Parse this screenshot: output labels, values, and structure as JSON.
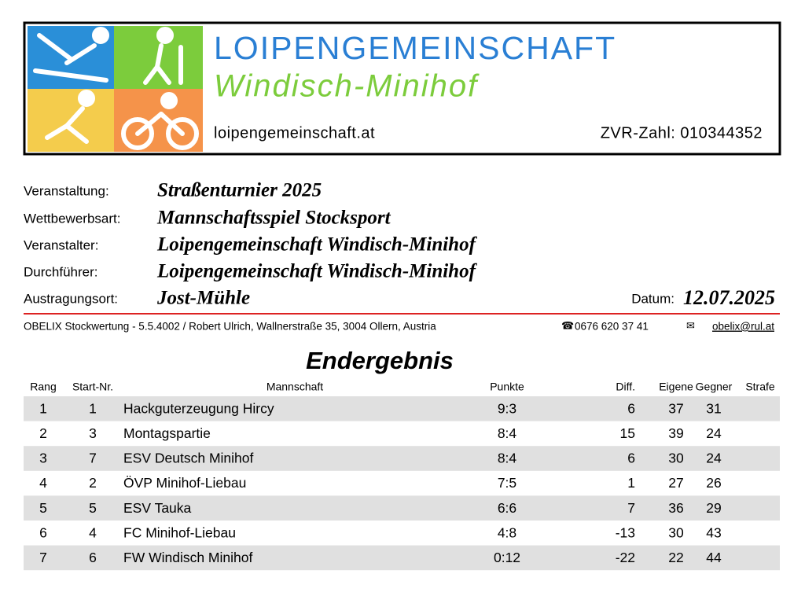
{
  "header": {
    "title": "LOIPENGEMEINSCHAFT",
    "subtitle": "Windisch-Minihof",
    "website": "loipengemeinschaft.at",
    "zvr": "ZVR-Zahl: 010344352"
  },
  "info": [
    {
      "label": "Veranstaltung:",
      "value": "Straßenturnier 2025"
    },
    {
      "label": "Wettbewerbsart:",
      "value": "Mannschaftsspiel Stocksport"
    },
    {
      "label": "Veranstalter:",
      "value": "Loipengemeinschaft Windisch-Minihof"
    },
    {
      "label": "Durchführer:",
      "value": "Loipengemeinschaft Windisch-Minihof"
    },
    {
      "label": "Austragungsort:",
      "value": "Jost-Mühle"
    }
  ],
  "date": {
    "label": "Datum:",
    "value": "12.07.2025"
  },
  "footer_line": {
    "software": "OBELIX Stockwertung - 5.5.4002 / Robert Ulrich, Wallnerstraße 35, 3004 Ollern, Austria",
    "phone": "0676 620 37 41",
    "email": "obelix@rul.at"
  },
  "result_title": "Endergebnis",
  "table": {
    "columns": [
      "Rang",
      "Start-Nr.",
      "Mannschaft",
      "Punkte",
      "Diff.",
      "Eigene",
      "Gegner",
      "Strafe"
    ],
    "rows": [
      [
        1,
        1,
        "Hackguterzeugung Hircy",
        "9:3",
        6,
        37,
        31
      ],
      [
        2,
        3,
        "Montagspartie",
        "8:4",
        15,
        39,
        24
      ],
      [
        3,
        7,
        "ESV Deutsch Minihof",
        "8:4",
        6,
        30,
        24
      ],
      [
        4,
        2,
        "ÖVP Minihof-Liebau",
        "7:5",
        1,
        27,
        26
      ],
      [
        5,
        5,
        "ESV Tauka",
        "6:6",
        7,
        36,
        29
      ],
      [
        6,
        4,
        "FC Minihof-Liebau",
        "4:8",
        -13,
        30,
        43
      ],
      [
        7,
        6,
        "FW Windisch Minihof",
        "0:12",
        -22,
        22,
        44
      ]
    ]
  }
}
